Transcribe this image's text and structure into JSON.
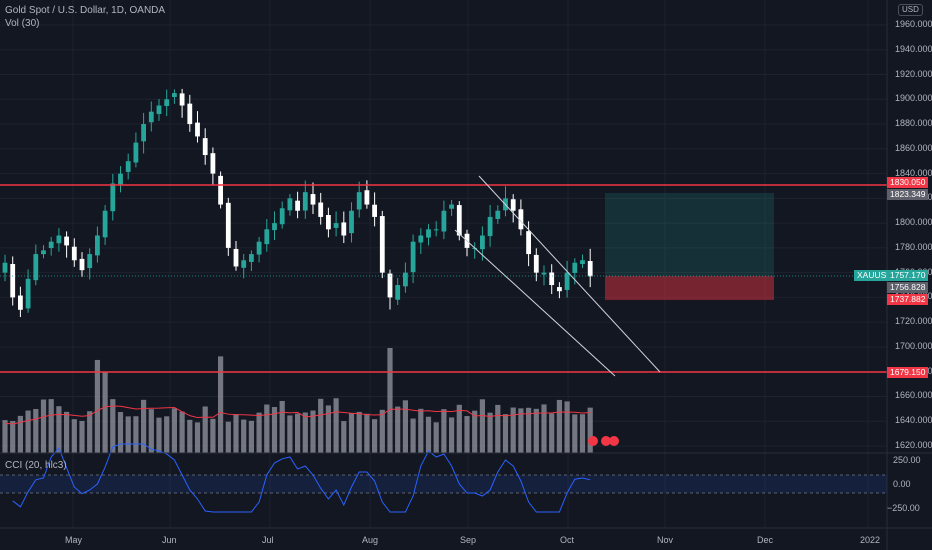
{
  "header": {
    "title": "Gold Spot / U.S. Dollar, 1D, OANDA",
    "volume_label": "Vol (30)",
    "currency": "USD"
  },
  "cci": {
    "label": "CCI (20, hlc3)",
    "ticks": [
      "250.00",
      "0.00",
      "−250.00"
    ]
  },
  "colors": {
    "up": "#26a69a",
    "down": "#ffffff",
    "resistance": "#f23645",
    "channel": "#ffffff",
    "cci_line": "#2962ff",
    "volume": "#9598a1"
  },
  "price_axis": [
    "1960.000",
    "1940.000",
    "1920.000",
    "1900.000",
    "1880.000",
    "1860.000",
    "1840.000",
    "1820.000",
    "1800.000",
    "1780.000",
    "1760.000",
    "1740.000",
    "1720.000",
    "1700.000",
    "1680.000",
    "1660.000",
    "1640.000",
    "1620.000"
  ],
  "time_axis": [
    "May",
    "Jun",
    "Jul",
    "Aug",
    "Sep",
    "Oct",
    "Nov",
    "Dec",
    "2022"
  ],
  "tags": {
    "resistance_top": "1830.050",
    "target": "1823.349",
    "symbol": "XAUUSD",
    "last": "1757.170",
    "entry": "1756.828",
    "stop": "1737.882",
    "support": "1679.150"
  },
  "chart_data": {
    "type": "candlestick",
    "symbol": "XAUUSD",
    "interval": "1D",
    "y_range": [
      1615,
      1965
    ],
    "levels": {
      "resistance": 1830.05,
      "support": 1679.15
    },
    "position": {
      "entry": 1756.828,
      "target": 1823.349,
      "stop": 1737.882
    },
    "closes": [
      1768,
      1740,
      1730,
      1755,
      1775,
      1778,
      1785,
      1790,
      1782,
      1770,
      1762,
      1775,
      1790,
      1810,
      1832,
      1840,
      1850,
      1865,
      1880,
      1890,
      1895,
      1900,
      1905,
      1895,
      1880,
      1870,
      1855,
      1840,
      1815,
      1780,
      1765,
      1770,
      1775,
      1785,
      1795,
      1800,
      1812,
      1820,
      1810,
      1825,
      1815,
      1805,
      1795,
      1800,
      1790,
      1810,
      1825,
      1815,
      1805,
      1760,
      1740,
      1750,
      1760,
      1785,
      1790,
      1795,
      1795,
      1810,
      1815,
      1790,
      1780,
      1780,
      1790,
      1805,
      1810,
      1820,
      1810,
      1795,
      1775,
      1760,
      1760,
      1750,
      1745,
      1760,
      1768,
      1770,
      1757
    ]
  }
}
